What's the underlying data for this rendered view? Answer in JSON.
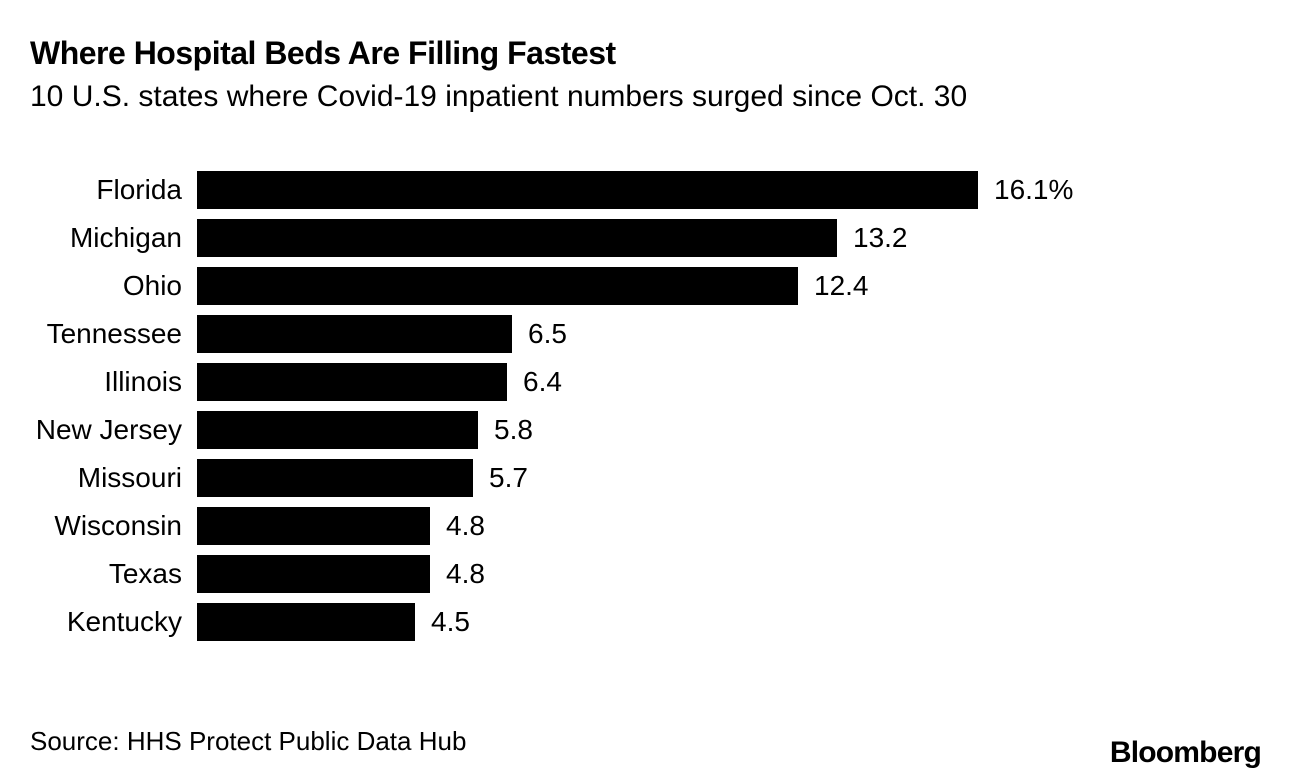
{
  "header": {
    "title": "Where Hospital Beds Are Filling Fastest",
    "subtitle": "10 U.S. states where Covid-19 inpatient numbers surged since Oct. 30"
  },
  "chart_data": {
    "type": "bar",
    "orientation": "horizontal",
    "title": "Where Hospital Beds Are Filling Fastest",
    "subtitle": "10 U.S. states where Covid-19 inpatient numbers surged since Oct. 30",
    "categories": [
      "Florida",
      "Michigan",
      "Ohio",
      "Tennessee",
      "Illinois",
      "New Jersey",
      "Missouri",
      "Wisconsin",
      "Texas",
      "Kentucky"
    ],
    "values": [
      16.1,
      13.2,
      12.4,
      6.5,
      6.4,
      5.8,
      5.7,
      4.8,
      4.8,
      4.5
    ],
    "value_labels": [
      "16.1%",
      "13.2",
      "12.4",
      "6.5",
      "6.4",
      "5.8",
      "5.7",
      "4.8",
      "4.8",
      "4.5"
    ],
    "unit": "%",
    "xlabel": "",
    "ylabel": "",
    "xlim": [
      0,
      16.6
    ],
    "grid": false,
    "legend": false,
    "bar_color": "#000000",
    "text_color": "#000000",
    "background_color": "#ffffff"
  },
  "footer": {
    "source": "Source: HHS Protect Public Data Hub",
    "brand": "Bloomberg"
  }
}
